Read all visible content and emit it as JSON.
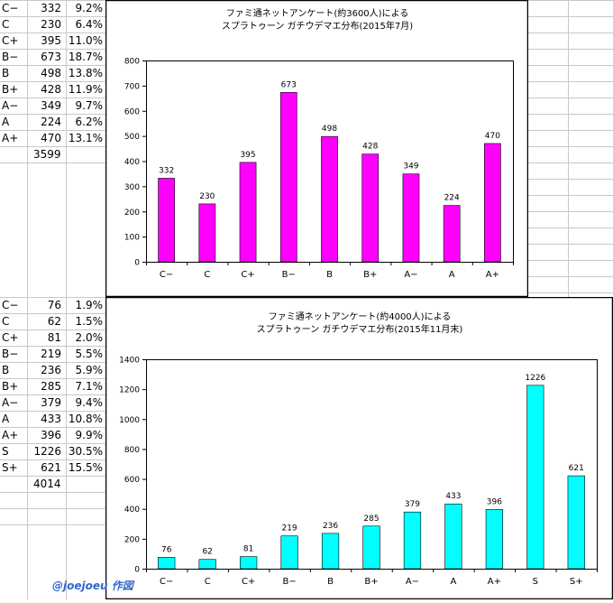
{
  "colors": {
    "gridline": "#c8c8c8",
    "chart1_bar": "#ff00ff",
    "chart2_bar": "#00ffff",
    "signature": "#3366cc"
  },
  "table_top": {
    "rows": [
      {
        "grade": "C−",
        "count": "332",
        "pct": "9.2%"
      },
      {
        "grade": "C",
        "count": "230",
        "pct": "6.4%"
      },
      {
        "grade": "C+",
        "count": "395",
        "pct": "11.0%"
      },
      {
        "grade": "B−",
        "count": "673",
        "pct": "18.7%"
      },
      {
        "grade": "B",
        "count": "498",
        "pct": "13.8%"
      },
      {
        "grade": "B+",
        "count": "428",
        "pct": "11.9%"
      },
      {
        "grade": "A−",
        "count": "349",
        "pct": "9.7%"
      },
      {
        "grade": "A",
        "count": "224",
        "pct": "6.2%"
      },
      {
        "grade": "A+",
        "count": "470",
        "pct": "13.1%"
      }
    ],
    "total": "3599"
  },
  "table_bottom": {
    "rows": [
      {
        "grade": "C−",
        "count": "76",
        "pct": "1.9%"
      },
      {
        "grade": "C",
        "count": "62",
        "pct": "1.5%"
      },
      {
        "grade": "C+",
        "count": "81",
        "pct": "2.0%"
      },
      {
        "grade": "B−",
        "count": "219",
        "pct": "5.5%"
      },
      {
        "grade": "B",
        "count": "236",
        "pct": "5.9%"
      },
      {
        "grade": "B+",
        "count": "285",
        "pct": "7.1%"
      },
      {
        "grade": "A−",
        "count": "379",
        "pct": "9.4%"
      },
      {
        "grade": "A",
        "count": "433",
        "pct": "10.8%"
      },
      {
        "grade": "A+",
        "count": "396",
        "pct": "9.9%"
      },
      {
        "grade": "S",
        "count": "1226",
        "pct": "30.5%"
      },
      {
        "grade": "S+",
        "count": "621",
        "pct": "15.5%"
      }
    ],
    "total": "4014"
  },
  "signature": "@joejoeu 作図",
  "chart_data": [
    {
      "type": "bar",
      "title_lines": [
        "ファミ通ネットアンケート(約3600人)による",
        "スプラトゥーン ガチウデマエ分布(2015年7月)"
      ],
      "categories": [
        "C−",
        "C",
        "C+",
        "B−",
        "B",
        "B+",
        "A−",
        "A",
        "A+"
      ],
      "values": [
        332,
        230,
        395,
        673,
        498,
        428,
        349,
        224,
        470
      ],
      "ylim": [
        0,
        800
      ],
      "yticks": [
        0,
        100,
        200,
        300,
        400,
        500,
        600,
        700,
        800
      ],
      "grid": false,
      "legend": false
    },
    {
      "type": "bar",
      "title_lines": [
        "ファミ通ネットアンケート(約4000人)による",
        "スプラトゥーン ガチウデマエ分布(2015年11月末)"
      ],
      "categories": [
        "C−",
        "C",
        "C+",
        "B−",
        "B",
        "B+",
        "A−",
        "A",
        "A+",
        "S",
        "S+"
      ],
      "values": [
        76,
        62,
        81,
        219,
        236,
        285,
        379,
        433,
        396,
        1226,
        621
      ],
      "ylim": [
        0,
        1400
      ],
      "yticks": [
        0,
        200,
        400,
        600,
        800,
        1000,
        1200,
        1400
      ],
      "grid": false,
      "legend": false
    }
  ]
}
